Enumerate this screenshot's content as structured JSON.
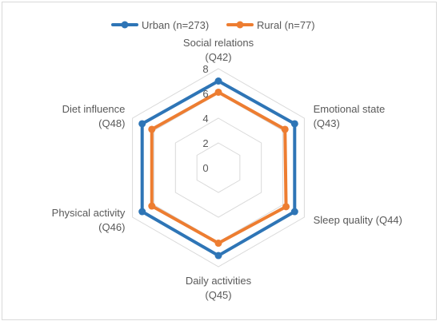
{
  "chart_data": {
    "type": "radar",
    "categories": [
      "Social relations (Q42)",
      "Emotional state (Q43)",
      "Sleep quality (Q44)",
      "Daily activities (Q45)",
      "Physical activity (Q46)",
      "Diet influence (Q48)"
    ],
    "category_lines": [
      [
        "Social relations",
        "(Q42)"
      ],
      [
        "Emotional state",
        "(Q43)"
      ],
      [
        "Sleep quality (Q44)"
      ],
      [
        "Daily activities",
        "(Q45)"
      ],
      [
        "Physical activity",
        "(Q46)"
      ],
      [
        "Diet influence",
        "(Q48)"
      ]
    ],
    "series": [
      {
        "name": "Urban (n=273)",
        "color": "#2e75b6",
        "values": [
          7.0,
          7.1,
          7.1,
          7.1,
          7.1,
          7.1
        ]
      },
      {
        "name": "Rural (n=77)",
        "color": "#ed7d31",
        "values": [
          6.1,
          6.2,
          6.3,
          6.1,
          6.2,
          6.2
        ]
      }
    ],
    "r_ticks": [
      "0",
      "2",
      "4",
      "6",
      "8"
    ],
    "r_range": [
      0,
      8
    ],
    "grid": true,
    "legend_position": "top"
  }
}
